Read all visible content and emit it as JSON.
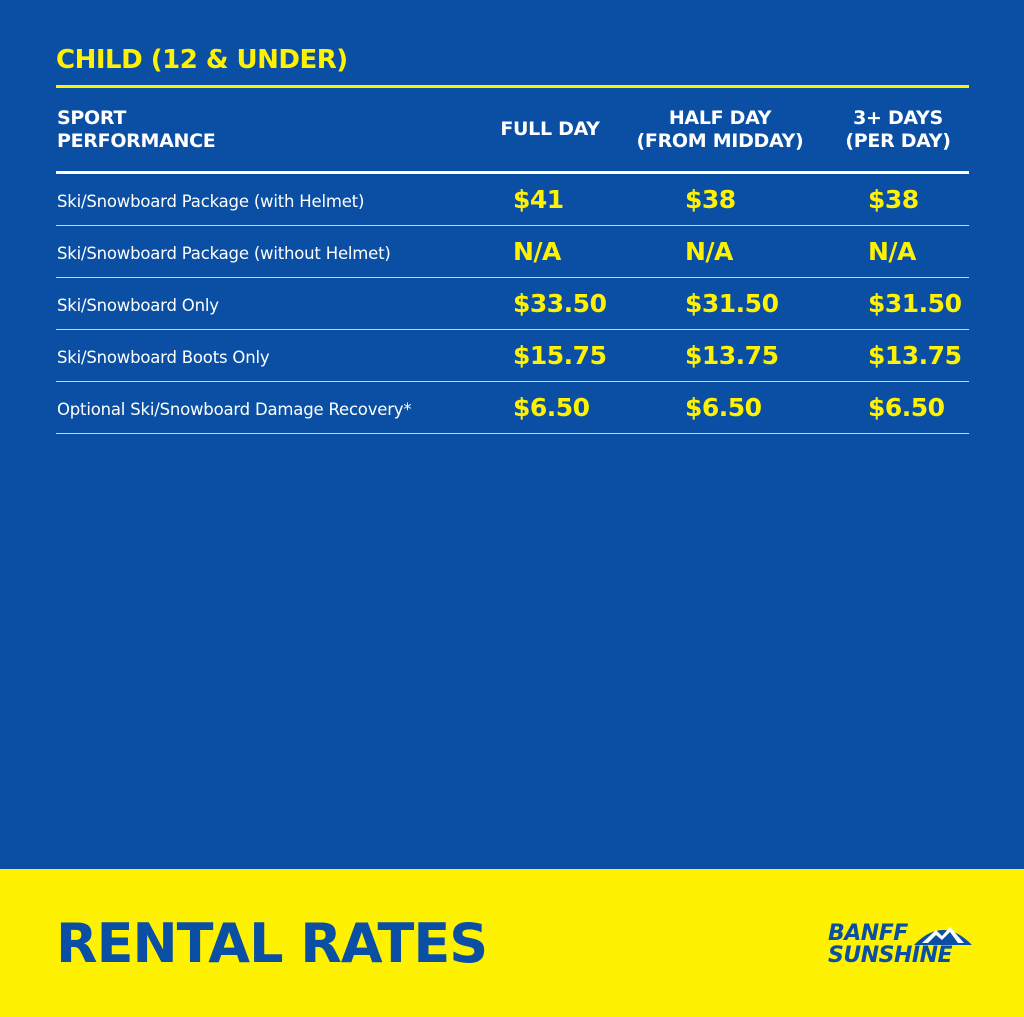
{
  "section_title": "CHILD (12 & UNDER)",
  "table": {
    "headers": {
      "sport": "SPORT\nPERFORMANCE",
      "full_day": "FULL DAY",
      "half_day": "HALF DAY\n(FROM MIDDAY)",
      "multi_day": "3+ DAYS\n(PER DAY)"
    },
    "rows": [
      {
        "label": "Ski/Snowboard Package (with Helmet)",
        "full_day": "$41",
        "half_day": "$38",
        "multi_day": "$38"
      },
      {
        "label": "Ski/Snowboard Package (without Helmet)",
        "full_day": "N/A",
        "half_day": "N/A",
        "multi_day": "N/A"
      },
      {
        "label": "Ski/Snowboard Only",
        "full_day": "$33.50",
        "half_day": "$31.50",
        "multi_day": "$31.50"
      },
      {
        "label": "Ski/Snowboard Boots Only",
        "full_day": "$15.75",
        "half_day": "$13.75",
        "multi_day": "$13.75"
      },
      {
        "label": "Optional Ski/Snowboard Damage Recovery*",
        "full_day": "$6.50",
        "half_day": "$6.50",
        "multi_day": "$6.50"
      }
    ]
  },
  "footer": {
    "title": "RENTAL RATES",
    "logo_line1": "BANFF",
    "logo_line2": "SUNSHINE",
    "logo_icon": "mountain-icon"
  },
  "colors": {
    "background_blue": "#0a4fa3",
    "accent_yellow": "#fff200",
    "text_white": "#ffffff"
  }
}
